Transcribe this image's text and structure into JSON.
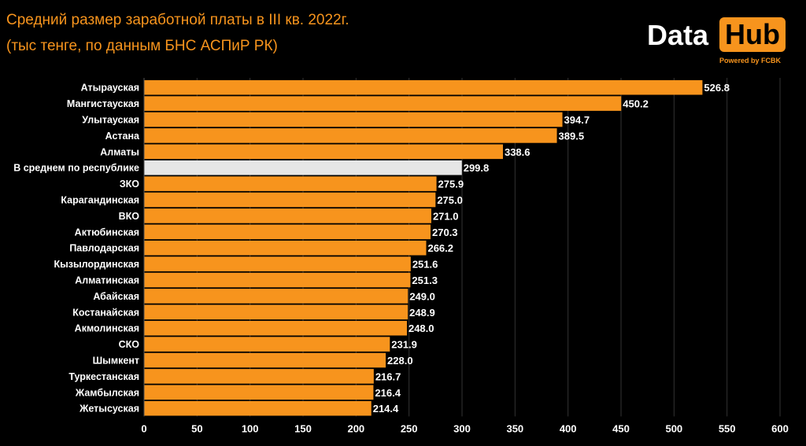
{
  "header": {
    "title_line1": "Средний размер заработной платы в III кв. 2022г.",
    "title_line2": "(тыс тенге, по данным БНС АСПиР РК)"
  },
  "logo": {
    "word1": "Data",
    "word2": "Hub",
    "tagline": "Powered by FCBK"
  },
  "colors": {
    "bar": "#f7941d",
    "highlight_bar": "#e6e6e6",
    "background": "#000000",
    "text": "#ffffff",
    "grid": "#333333"
  },
  "chart_data": {
    "type": "bar",
    "orientation": "horizontal",
    "title": "Средний размер заработной платы в III кв. 2022г.",
    "subtitle": "(тыс тенге, по данным БНС АСПиР РК)",
    "xlim": [
      0,
      600
    ],
    "xticks": [
      0,
      50,
      100,
      150,
      200,
      250,
      300,
      350,
      400,
      450,
      500,
      550,
      600
    ],
    "grid": true,
    "highlight_category": "В среднем по республике",
    "categories": [
      "Атырауская",
      "Мангистауская",
      "Улытауская",
      "Астана",
      "Алматы",
      "В среднем по республике",
      "ЗКО",
      "Карагандинская",
      "ВКО",
      "Актюбинская",
      "Павлодарская",
      "Кызылординская",
      "Алматинская",
      "Абайская",
      "Костанайская",
      "Акмолинская",
      "СКО",
      "Шымкент",
      "Туркестанская",
      "Жамбылская",
      "Жетысуская"
    ],
    "values": [
      526.8,
      450.2,
      394.7,
      389.5,
      338.6,
      299.8,
      275.9,
      275.0,
      271.0,
      270.3,
      266.2,
      251.6,
      251.3,
      249.0,
      248.9,
      248.0,
      231.9,
      228.0,
      216.7,
      216.4,
      214.4
    ],
    "value_labels": [
      "526.8",
      "450.2",
      "394.7",
      "389.5",
      "338.6",
      "299.8",
      "275.9",
      "275.0",
      "271.0",
      "270.3",
      "266.2",
      "251.6",
      "251.3",
      "249.0",
      "248.9",
      "248.0",
      "231.9",
      "228.0",
      "216.7",
      "216.4",
      "214.4"
    ]
  }
}
